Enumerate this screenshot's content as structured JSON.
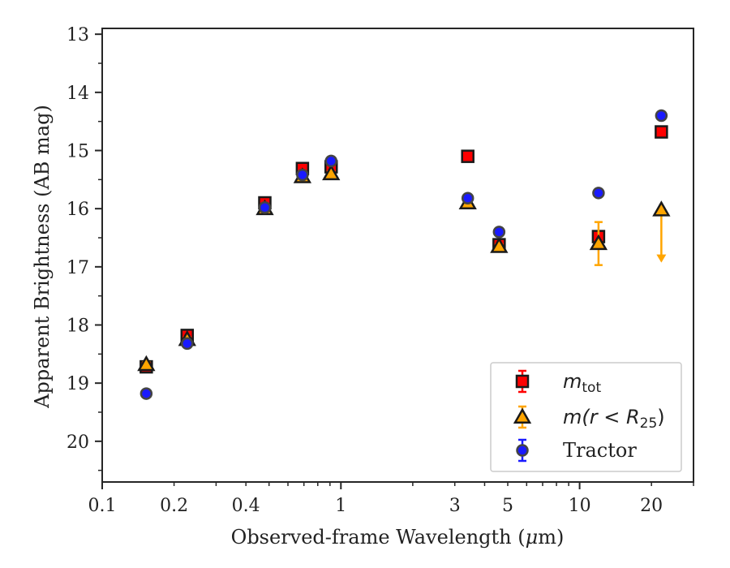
{
  "chart_data": {
    "type": "scatter",
    "title": "",
    "xlabel_prefix": "Observed-frame Wavelength (",
    "xlabel_mu": "μ",
    "xlabel_suffix": "m)",
    "ylabel": "Apparent Brightness (AB mag)",
    "x_scale": "log",
    "xlim": [
      0.1,
      30
    ],
    "ylim": [
      20.7,
      12.9
    ],
    "y_inverted": true,
    "grid": false,
    "legend_position": "lower-right",
    "x_ticks": [
      {
        "value": 0.1,
        "label": "0.1"
      },
      {
        "value": 0.2,
        "label": "0.2"
      },
      {
        "value": 0.4,
        "label": "0.4"
      },
      {
        "value": 1,
        "label": "1"
      },
      {
        "value": 3,
        "label": "3"
      },
      {
        "value": 5,
        "label": "5"
      },
      {
        "value": 10,
        "label": "10"
      },
      {
        "value": 20,
        "label": "20"
      }
    ],
    "y_ticks": [
      {
        "value": 13,
        "label": "13"
      },
      {
        "value": 14,
        "label": "14"
      },
      {
        "value": 15,
        "label": "15"
      },
      {
        "value": 16,
        "label": "16"
      },
      {
        "value": 17,
        "label": "17"
      },
      {
        "value": 18,
        "label": "18"
      },
      {
        "value": 19,
        "label": "19"
      },
      {
        "value": 20,
        "label": "20"
      }
    ],
    "series": [
      {
        "key": "mtot",
        "legend_main": "m",
        "legend_sub": "tot",
        "marker": "square",
        "color": "#ff0000",
        "edge": "#1a1a1a",
        "points": [
          {
            "x": 0.153,
            "y": 18.72,
            "err": 0.05
          },
          {
            "x": 0.227,
            "y": 18.18,
            "err": 0.05
          },
          {
            "x": 0.48,
            "y": 15.9,
            "err": 0.05
          },
          {
            "x": 0.69,
            "y": 15.31,
            "err": 0.05
          },
          {
            "x": 0.91,
            "y": 15.28,
            "err": 0.05
          },
          {
            "x": 3.4,
            "y": 15.1,
            "err": 0.03
          },
          {
            "x": 4.6,
            "y": 16.62,
            "err": 0.05
          },
          {
            "x": 12.0,
            "y": 16.48,
            "err": 0.05
          },
          {
            "x": 22.0,
            "y": 14.68,
            "err": 0.04
          }
        ]
      },
      {
        "key": "mr25",
        "legend_main": "m(r < R",
        "legend_sub": "25",
        "legend_tail": ")",
        "marker": "triangle",
        "color": "#ffa500",
        "edge": "#1a1a1a",
        "points": [
          {
            "x": 0.153,
            "y": 18.68,
            "err": 0.04
          },
          {
            "x": 0.227,
            "y": 18.25,
            "err": 0.04
          },
          {
            "x": 0.48,
            "y": 16.0,
            "err": 0.04
          },
          {
            "x": 0.69,
            "y": 15.45,
            "err": 0.04
          },
          {
            "x": 0.91,
            "y": 15.4,
            "err": 0.04
          },
          {
            "x": 3.4,
            "y": 15.9,
            "err": 0.04
          },
          {
            "x": 4.6,
            "y": 16.65,
            "err": 0.04
          },
          {
            "x": 12.0,
            "y": 16.6,
            "err": 0.37
          },
          {
            "x": 22.0,
            "y": 16.02,
            "err": 0,
            "upper_limit_to": 16.9
          }
        ]
      },
      {
        "key": "tractor",
        "legend_main": "Tractor",
        "marker": "circle",
        "color": "#1a1aff",
        "edge": "#444444",
        "points": [
          {
            "x": 0.153,
            "y": 19.18,
            "err": 0.05
          },
          {
            "x": 0.227,
            "y": 18.32,
            "err": 0.05
          },
          {
            "x": 0.48,
            "y": 15.98,
            "err": 0.05
          },
          {
            "x": 0.69,
            "y": 15.42,
            "err": 0.05
          },
          {
            "x": 0.91,
            "y": 15.18,
            "err": 0.05
          },
          {
            "x": 3.4,
            "y": 15.82,
            "err": 0.05
          },
          {
            "x": 4.6,
            "y": 16.4,
            "err": 0.05
          },
          {
            "x": 12.0,
            "y": 15.73,
            "err": 0.04
          },
          {
            "x": 22.0,
            "y": 14.4,
            "err": 0.04
          }
        ]
      }
    ]
  }
}
